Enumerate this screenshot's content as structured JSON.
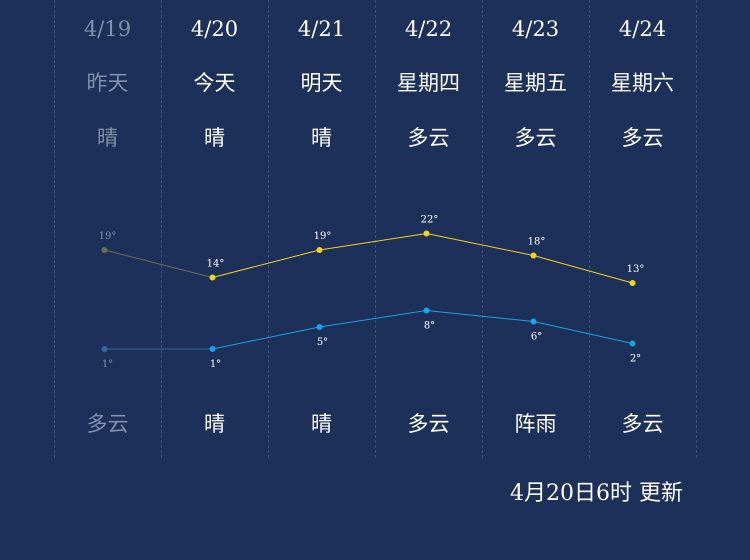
{
  "days": [
    {
      "date": "4/19",
      "name": "昨天",
      "day_weather": "晴",
      "night_weather": "多云",
      "high": 19,
      "low": 1,
      "high_label": "19°",
      "low_label": "1°",
      "past": true
    },
    {
      "date": "4/20",
      "name": "今天",
      "day_weather": "晴",
      "night_weather": "晴",
      "high": 14,
      "low": 1,
      "high_label": "14°",
      "low_label": "1°",
      "past": false
    },
    {
      "date": "4/21",
      "name": "明天",
      "day_weather": "晴",
      "night_weather": "晴",
      "high": 19,
      "low": 5,
      "high_label": "19°",
      "low_label": "5°",
      "past": false
    },
    {
      "date": "4/22",
      "name": "星期四",
      "day_weather": "多云",
      "night_weather": "多云",
      "high": 22,
      "low": 8,
      "high_label": "22°",
      "low_label": "8°",
      "past": false
    },
    {
      "date": "4/23",
      "name": "星期五",
      "day_weather": "多云",
      "night_weather": "阵雨",
      "high": 18,
      "low": 6,
      "high_label": "18°",
      "low_label": "6°",
      "past": false
    },
    {
      "date": "4/24",
      "name": "星期六",
      "day_weather": "多云",
      "night_weather": "多云",
      "high": 13,
      "low": 2,
      "high_label": "13°",
      "low_label": "2°",
      "past": false
    }
  ],
  "updated_text": "4月20日6时 更新",
  "colors": {
    "background": "#1c3059",
    "high_line": "#f2d41a",
    "low_line": "#1aa3e6",
    "past_text": "#8291ab",
    "past_high_line": "#6b7050",
    "past_low_line": "#2d6d9a"
  },
  "chart_data": {
    "type": "line",
    "categories": [
      "4/19",
      "4/20",
      "4/21",
      "4/22",
      "4/23",
      "4/24"
    ],
    "series": [
      {
        "values": [
          19,
          14,
          19,
          22,
          18,
          13
        ]
      },
      {
        "values": [
          1,
          1,
          5,
          8,
          6,
          2
        ]
      }
    ],
    "xlabel": "",
    "ylabel": "",
    "grid": false
  }
}
